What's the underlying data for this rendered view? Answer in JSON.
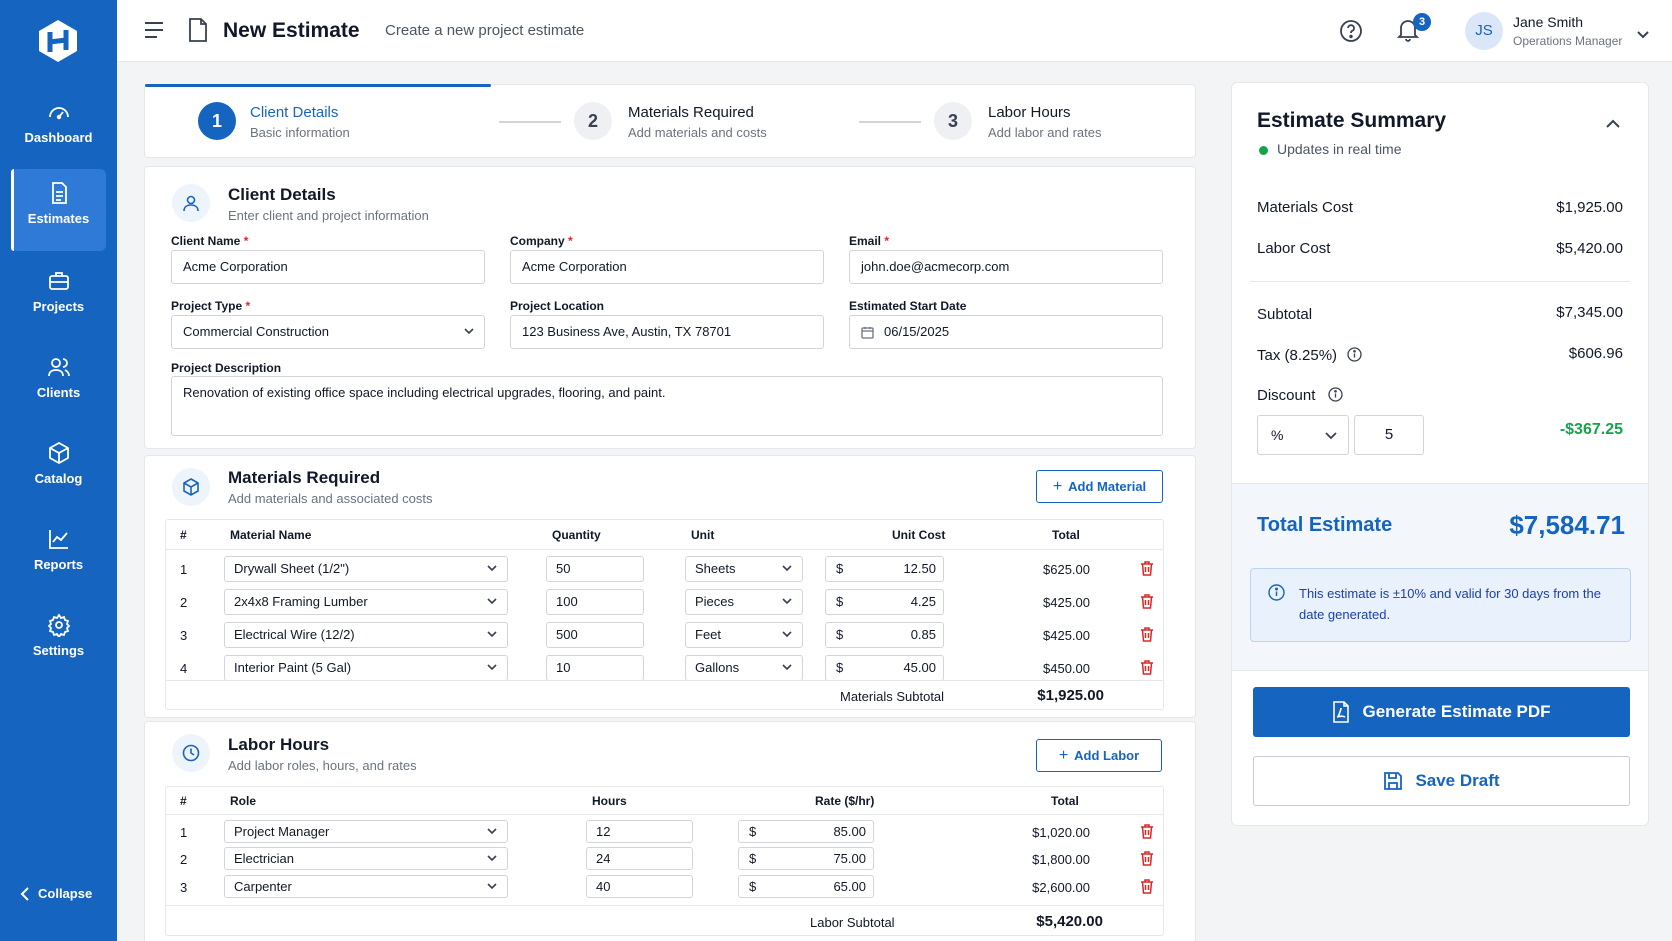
{
  "nav": {
    "items": [
      {
        "label": "Dashboard",
        "icon": "dashboard-icon"
      },
      {
        "label": "Estimates",
        "icon": "file-icon",
        "active": true
      },
      {
        "label": "Projects",
        "icon": "briefcase-icon"
      },
      {
        "label": "Clients",
        "icon": "users-icon"
      },
      {
        "label": "Catalog",
        "icon": "box-icon"
      },
      {
        "label": "Reports",
        "icon": "chart-icon"
      },
      {
        "label": "Settings",
        "icon": "gear-icon"
      }
    ],
    "collapse_label": "Collapse"
  },
  "header": {
    "title": "New Estimate",
    "subtitle": "Create a new project estimate",
    "notification_count": "3",
    "user": {
      "initials": "JS",
      "name": "Jane Smith",
      "role": "Operations Manager"
    }
  },
  "stepper": {
    "steps": [
      {
        "number": "1",
        "title": "Client Details",
        "subtitle": "Basic information",
        "active": true
      },
      {
        "number": "2",
        "title": "Materials Required",
        "subtitle": "Add materials and costs"
      },
      {
        "number": "3",
        "title": "Labor Hours",
        "subtitle": "Add labor and rates"
      }
    ]
  },
  "client": {
    "title": "Client Details",
    "subtitle": "Enter client and project information",
    "fields": {
      "client_name": {
        "label": "Client Name",
        "value": "Acme Corporation"
      },
      "company": {
        "label": "Company",
        "value": "Acme Corporation"
      },
      "email": {
        "label": "Email",
        "value": "john.doe@acmecorp.com"
      },
      "project_type": {
        "label": "Project Type",
        "value": "Commercial Construction"
      },
      "project_location": {
        "label": "Project Location",
        "value": "123 Business Ave, Austin, TX 78701"
      },
      "start_date": {
        "label": "Estimated Start Date",
        "value": "06/15/2025"
      },
      "description": {
        "label": "Project Description",
        "value": "Renovation of existing office space including electrical upgrades, flooring, and paint."
      }
    },
    "required_mark": "*"
  },
  "materials": {
    "title": "Materials Required",
    "subtitle": "Add materials and associated costs",
    "add_label": "Add Material",
    "columns": {
      "num": "#",
      "name": "Material Name",
      "qty": "Quantity",
      "unit": "Unit",
      "cost": "Unit Cost",
      "total": "Total"
    },
    "currency": "$",
    "rows": [
      {
        "num": "1",
        "name": "Drywall Sheet (1/2\")",
        "qty": "50",
        "unit": "Sheets",
        "cost": "12.50",
        "total": "$625.00"
      },
      {
        "num": "2",
        "name": "2x4x8 Framing Lumber",
        "qty": "100",
        "unit": "Pieces",
        "cost": "4.25",
        "total": "$425.00"
      },
      {
        "num": "3",
        "name": "Electrical Wire (12/2)",
        "qty": "500",
        "unit": "Feet",
        "cost": "0.85",
        "total": "$425.00"
      },
      {
        "num": "4",
        "name": "Interior Paint (5 Gal)",
        "qty": "10",
        "unit": "Gallons",
        "cost": "45.00",
        "total": "$450.00"
      }
    ],
    "subtotal_label": "Materials Subtotal",
    "subtotal_value": "$1,925.00"
  },
  "labor": {
    "title": "Labor Hours",
    "subtitle": "Add labor roles, hours, and rates",
    "add_label": "Add Labor",
    "columns": {
      "num": "#",
      "role": "Role",
      "hours": "Hours",
      "rate": "Rate ($/hr)",
      "total": "Total"
    },
    "currency": "$",
    "rows": [
      {
        "num": "1",
        "role": "Project Manager",
        "hours": "12",
        "rate": "85.00",
        "total": "$1,020.00"
      },
      {
        "num": "2",
        "role": "Electrician",
        "hours": "24",
        "rate": "75.00",
        "total": "$1,800.00"
      },
      {
        "num": "3",
        "role": "Carpenter",
        "hours": "40",
        "rate": "65.00",
        "total": "$2,600.00"
      }
    ],
    "subtotal_label": "Labor Subtotal",
    "subtotal_value": "$5,420.00"
  },
  "summary": {
    "title": "Estimate Summary",
    "live_label": "Updates in real time",
    "materials_cost_label": "Materials Cost",
    "materials_cost": "$1,925.00",
    "labor_cost_label": "Labor Cost",
    "labor_cost": "$5,420.00",
    "subtotal_label": "Subtotal",
    "subtotal": "$7,345.00",
    "tax_label": "Tax (8.25%)",
    "tax": "$606.96",
    "discount_label": "Discount",
    "discount_type": "%",
    "discount_amount": "5",
    "discount_value": "-$367.25",
    "total_label": "Total Estimate",
    "total": "$7,584.71",
    "note": "This estimate is ±10% and valid for 30 days from the date generated.",
    "generate_label": "Generate Estimate PDF",
    "save_label": "Save Draft"
  },
  "colors": {
    "primary": "#1565c0",
    "positive": "#16a34a",
    "danger": "#dc2626"
  }
}
